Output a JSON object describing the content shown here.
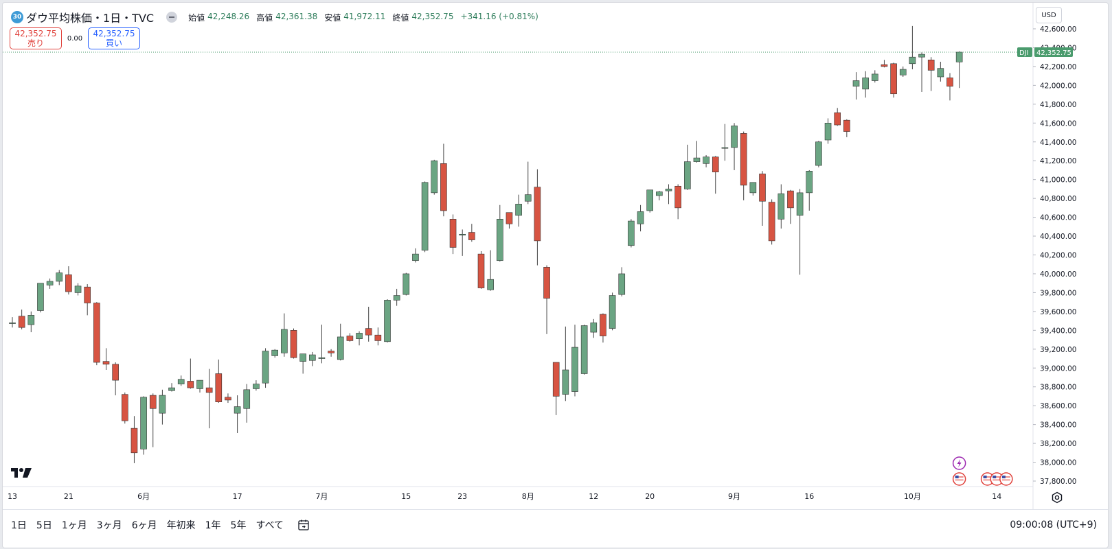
{
  "header": {
    "symbol_badge": "30",
    "title": "ダウ平均株価・1日・TVC",
    "ohlc": [
      {
        "label": "始値",
        "value": "42,248.26"
      },
      {
        "label": "高値",
        "value": "42,361.38"
      },
      {
        "label": "安値",
        "value": "41,972.11"
      },
      {
        "label": "終値",
        "value": "42,352.75"
      }
    ],
    "change": "+341.16 (+0.81%)"
  },
  "trade": {
    "sell_price": "42,352.75",
    "sell_label": "売り",
    "spread": "0.00",
    "buy_price": "42,352.75",
    "buy_label": "買い"
  },
  "price_axis": {
    "currency": "USD",
    "ticks": [
      "42,600.00",
      "42,400.00",
      "42,200.00",
      "42,000.00",
      "41,800.00",
      "41,600.00",
      "41,400.00",
      "41,200.00",
      "41,000.00",
      "40,800.00",
      "40,600.00",
      "40,400.00",
      "40,200.00",
      "40,000.00",
      "39,800.00",
      "39,600.00",
      "39,400.00",
      "39,200.00",
      "39,000.00",
      "38,800.00",
      "38,600.00",
      "38,400.00",
      "38,200.00",
      "38,000.00",
      "37,800.00"
    ],
    "last_label": "DJI",
    "last_value": "42,352.75"
  },
  "time_axis": {
    "labels": [
      {
        "text": "13",
        "index": 0
      },
      {
        "text": "21",
        "index": 6
      },
      {
        "text": "6月",
        "index": 14
      },
      {
        "text": "17",
        "index": 24
      },
      {
        "text": "7月",
        "index": 33
      },
      {
        "text": "15",
        "index": 42
      },
      {
        "text": "23",
        "index": 48
      },
      {
        "text": "8月",
        "index": 55
      },
      {
        "text": "12",
        "index": 62
      },
      {
        "text": "20",
        "index": 68
      },
      {
        "text": "9月",
        "index": 77
      },
      {
        "text": "16",
        "index": 85
      },
      {
        "text": "10月",
        "index": 96
      },
      {
        "text": "14",
        "index": 105
      }
    ]
  },
  "bottom": {
    "ranges": [
      "1日",
      "5日",
      "1ヶ月",
      "3ヶ月",
      "6ヶ月",
      "年初来",
      "1年",
      "5年",
      "すべて"
    ],
    "clock": "09:00:08 (UTC+9)"
  },
  "colors": {
    "up": "#6ba583",
    "down": "#d75442",
    "wick": "#555555",
    "last_line": "#4a9b6d"
  },
  "chart_data": {
    "type": "candlestick",
    "ylim": [
      37700,
      42700
    ],
    "candles": [
      {
        "o": 39480,
        "h": 39540,
        "l": 39430,
        "c": 39480
      },
      {
        "o": 39550,
        "h": 39620,
        "l": 39410,
        "c": 39430
      },
      {
        "o": 39460,
        "h": 39600,
        "l": 39380,
        "c": 39560
      },
      {
        "o": 39610,
        "h": 39900,
        "l": 39590,
        "c": 39900
      },
      {
        "o": 39880,
        "h": 39950,
        "l": 39840,
        "c": 39920
      },
      {
        "o": 39920,
        "h": 40040,
        "l": 39880,
        "c": 40010
      },
      {
        "o": 39990,
        "h": 40080,
        "l": 39780,
        "c": 39810
      },
      {
        "o": 39800,
        "h": 39900,
        "l": 39770,
        "c": 39870
      },
      {
        "o": 39860,
        "h": 39890,
        "l": 39560,
        "c": 39690
      },
      {
        "o": 39690,
        "h": 39700,
        "l": 39030,
        "c": 39060
      },
      {
        "o": 39070,
        "h": 39210,
        "l": 38980,
        "c": 39040
      },
      {
        "o": 39040,
        "h": 39060,
        "l": 38710,
        "c": 38870
      },
      {
        "o": 38720,
        "h": 38740,
        "l": 38410,
        "c": 38440
      },
      {
        "o": 38360,
        "h": 38490,
        "l": 37990,
        "c": 38100
      },
      {
        "o": 38140,
        "h": 38700,
        "l": 38080,
        "c": 38690
      },
      {
        "o": 38710,
        "h": 38730,
        "l": 38160,
        "c": 38570
      },
      {
        "o": 38520,
        "h": 38770,
        "l": 38400,
        "c": 38710
      },
      {
        "o": 38760,
        "h": 38840,
        "l": 38750,
        "c": 38790
      },
      {
        "o": 38830,
        "h": 38920,
        "l": 38810,
        "c": 38880
      },
      {
        "o": 38860,
        "h": 39100,
        "l": 38780,
        "c": 38790
      },
      {
        "o": 38780,
        "h": 38870,
        "l": 38740,
        "c": 38870
      },
      {
        "o": 38790,
        "h": 38990,
        "l": 38360,
        "c": 38740
      },
      {
        "o": 38940,
        "h": 39090,
        "l": 38630,
        "c": 38640
      },
      {
        "o": 38690,
        "h": 38730,
        "l": 38630,
        "c": 38660
      },
      {
        "o": 38520,
        "h": 38710,
        "l": 38310,
        "c": 38590
      },
      {
        "o": 38570,
        "h": 38830,
        "l": 38420,
        "c": 38770
      },
      {
        "o": 38780,
        "h": 38870,
        "l": 38760,
        "c": 38830
      },
      {
        "o": 38840,
        "h": 39210,
        "l": 38790,
        "c": 39180
      },
      {
        "o": 39130,
        "h": 39200,
        "l": 39110,
        "c": 39190
      },
      {
        "o": 39160,
        "h": 39580,
        "l": 39120,
        "c": 39410
      },
      {
        "o": 39400,
        "h": 39420,
        "l": 39100,
        "c": 39110
      },
      {
        "o": 39070,
        "h": 39140,
        "l": 38940,
        "c": 39150
      },
      {
        "o": 39080,
        "h": 39170,
        "l": 39020,
        "c": 39140
      },
      {
        "o": 39100,
        "h": 39460,
        "l": 39050,
        "c": 39110
      },
      {
        "o": 39180,
        "h": 39200,
        "l": 39120,
        "c": 39160
      },
      {
        "o": 39090,
        "h": 39470,
        "l": 39080,
        "c": 39330
      },
      {
        "o": 39340,
        "h": 39370,
        "l": 39280,
        "c": 39290
      },
      {
        "o": 39310,
        "h": 39390,
        "l": 39240,
        "c": 39370
      },
      {
        "o": 39420,
        "h": 39650,
        "l": 39280,
        "c": 39350
      },
      {
        "o": 39350,
        "h": 39430,
        "l": 39240,
        "c": 39290
      },
      {
        "o": 39280,
        "h": 39730,
        "l": 39270,
        "c": 39720
      },
      {
        "o": 39720,
        "h": 39840,
        "l": 39660,
        "c": 39770
      },
      {
        "o": 39780,
        "h": 40010,
        "l": 39770,
        "c": 40000
      },
      {
        "o": 40140,
        "h": 40270,
        "l": 40120,
        "c": 40210
      },
      {
        "o": 40250,
        "h": 40980,
        "l": 40230,
        "c": 40970
      },
      {
        "o": 40860,
        "h": 41210,
        "l": 40840,
        "c": 41200
      },
      {
        "o": 41170,
        "h": 41380,
        "l": 40610,
        "c": 40670
      },
      {
        "o": 40580,
        "h": 40630,
        "l": 40210,
        "c": 40280
      },
      {
        "o": 40410,
        "h": 40470,
        "l": 40190,
        "c": 40420
      },
      {
        "o": 40440,
        "h": 40530,
        "l": 40340,
        "c": 40360
      },
      {
        "o": 40210,
        "h": 40240,
        "l": 39840,
        "c": 39850
      },
      {
        "o": 39830,
        "h": 40250,
        "l": 39820,
        "c": 39940
      },
      {
        "o": 40140,
        "h": 40730,
        "l": 40130,
        "c": 40580
      },
      {
        "o": 40650,
        "h": 40650,
        "l": 40480,
        "c": 40530
      },
      {
        "o": 40620,
        "h": 40840,
        "l": 40500,
        "c": 40740
      },
      {
        "o": 40770,
        "h": 41190,
        "l": 40740,
        "c": 40840
      },
      {
        "o": 40920,
        "h": 41110,
        "l": 40090,
        "c": 40350
      },
      {
        "o": 40070,
        "h": 40090,
        "l": 39360,
        "c": 39740
      },
      {
        "o": 39060,
        "h": 39060,
        "l": 38500,
        "c": 38700
      },
      {
        "o": 38720,
        "h": 39440,
        "l": 38650,
        "c": 38980
      },
      {
        "o": 38750,
        "h": 39460,
        "l": 38700,
        "c": 39220
      },
      {
        "o": 38940,
        "h": 39460,
        "l": 38930,
        "c": 39450
      },
      {
        "o": 39380,
        "h": 39520,
        "l": 39320,
        "c": 39480
      },
      {
        "o": 39570,
        "h": 39580,
        "l": 39270,
        "c": 39340
      },
      {
        "o": 39420,
        "h": 39800,
        "l": 39400,
        "c": 39770
      },
      {
        "o": 39780,
        "h": 40070,
        "l": 39760,
        "c": 40000
      },
      {
        "o": 40300,
        "h": 40580,
        "l": 40280,
        "c": 40560
      },
      {
        "o": 40530,
        "h": 40730,
        "l": 40450,
        "c": 40660
      },
      {
        "o": 40670,
        "h": 40890,
        "l": 40650,
        "c": 40890
      },
      {
        "o": 40830,
        "h": 40880,
        "l": 40780,
        "c": 40870
      },
      {
        "o": 40880,
        "h": 40950,
        "l": 40740,
        "c": 40900
      },
      {
        "o": 40930,
        "h": 40950,
        "l": 40580,
        "c": 40700
      },
      {
        "o": 40900,
        "h": 41370,
        "l": 40890,
        "c": 41190
      },
      {
        "o": 41190,
        "h": 41410,
        "l": 41180,
        "c": 41230
      },
      {
        "o": 41170,
        "h": 41260,
        "l": 41130,
        "c": 41240
      },
      {
        "o": 41240,
        "h": 41250,
        "l": 40850,
        "c": 41080
      },
      {
        "o": 41340,
        "h": 41590,
        "l": 41200,
        "c": 41340
      },
      {
        "o": 41340,
        "h": 41600,
        "l": 41100,
        "c": 41570
      },
      {
        "o": 41490,
        "h": 41510,
        "l": 40780,
        "c": 40940
      },
      {
        "o": 40860,
        "h": 40930,
        "l": 40830,
        "c": 40970
      },
      {
        "o": 41060,
        "h": 41090,
        "l": 40510,
        "c": 40770
      },
      {
        "o": 40760,
        "h": 40790,
        "l": 40310,
        "c": 40350
      },
      {
        "o": 40580,
        "h": 40950,
        "l": 40480,
        "c": 40850
      },
      {
        "o": 40880,
        "h": 40890,
        "l": 40530,
        "c": 40700
      },
      {
        "o": 40620,
        "h": 40900,
        "l": 39990,
        "c": 40860
      },
      {
        "o": 40860,
        "h": 41100,
        "l": 40670,
        "c": 41090
      },
      {
        "o": 41150,
        "h": 41410,
        "l": 41130,
        "c": 41400
      },
      {
        "o": 41420,
        "h": 41650,
        "l": 41380,
        "c": 41600
      },
      {
        "o": 41710,
        "h": 41760,
        "l": 41570,
        "c": 41580
      },
      {
        "o": 41630,
        "h": 41640,
        "l": 41450,
        "c": 41510
      },
      {
        "o": 41990,
        "h": 42140,
        "l": 41850,
        "c": 42050
      },
      {
        "o": 41960,
        "h": 42150,
        "l": 41870,
        "c": 42080
      },
      {
        "o": 42050,
        "h": 42160,
        "l": 42030,
        "c": 42120
      },
      {
        "o": 42220,
        "h": 42270,
        "l": 42190,
        "c": 42200
      },
      {
        "o": 42230,
        "h": 42240,
        "l": 41870,
        "c": 41910
      },
      {
        "o": 42110,
        "h": 42200,
        "l": 42090,
        "c": 42170
      },
      {
        "o": 42230,
        "h": 42630,
        "l": 42170,
        "c": 42300
      },
      {
        "o": 42300,
        "h": 42350,
        "l": 41930,
        "c": 42330
      },
      {
        "o": 42270,
        "h": 42300,
        "l": 41940,
        "c": 42160
      },
      {
        "o": 42090,
        "h": 42250,
        "l": 42040,
        "c": 42180
      },
      {
        "o": 42080,
        "h": 42130,
        "l": 41840,
        "c": 41990
      },
      {
        "o": 42248.26,
        "h": 42361.38,
        "l": 41972.11,
        "c": 42352.75
      }
    ],
    "events": [
      {
        "type": "lightning-icon",
        "index": 101,
        "row": 0
      },
      {
        "type": "us-flag-icon",
        "index": 101,
        "row": 1
      },
      {
        "type": "us-flag-icon",
        "index": 104,
        "row": 1
      },
      {
        "type": "us-flag-icon",
        "index": 105,
        "row": 1
      },
      {
        "type": "us-flag-icon",
        "index": 106,
        "row": 1
      }
    ]
  }
}
